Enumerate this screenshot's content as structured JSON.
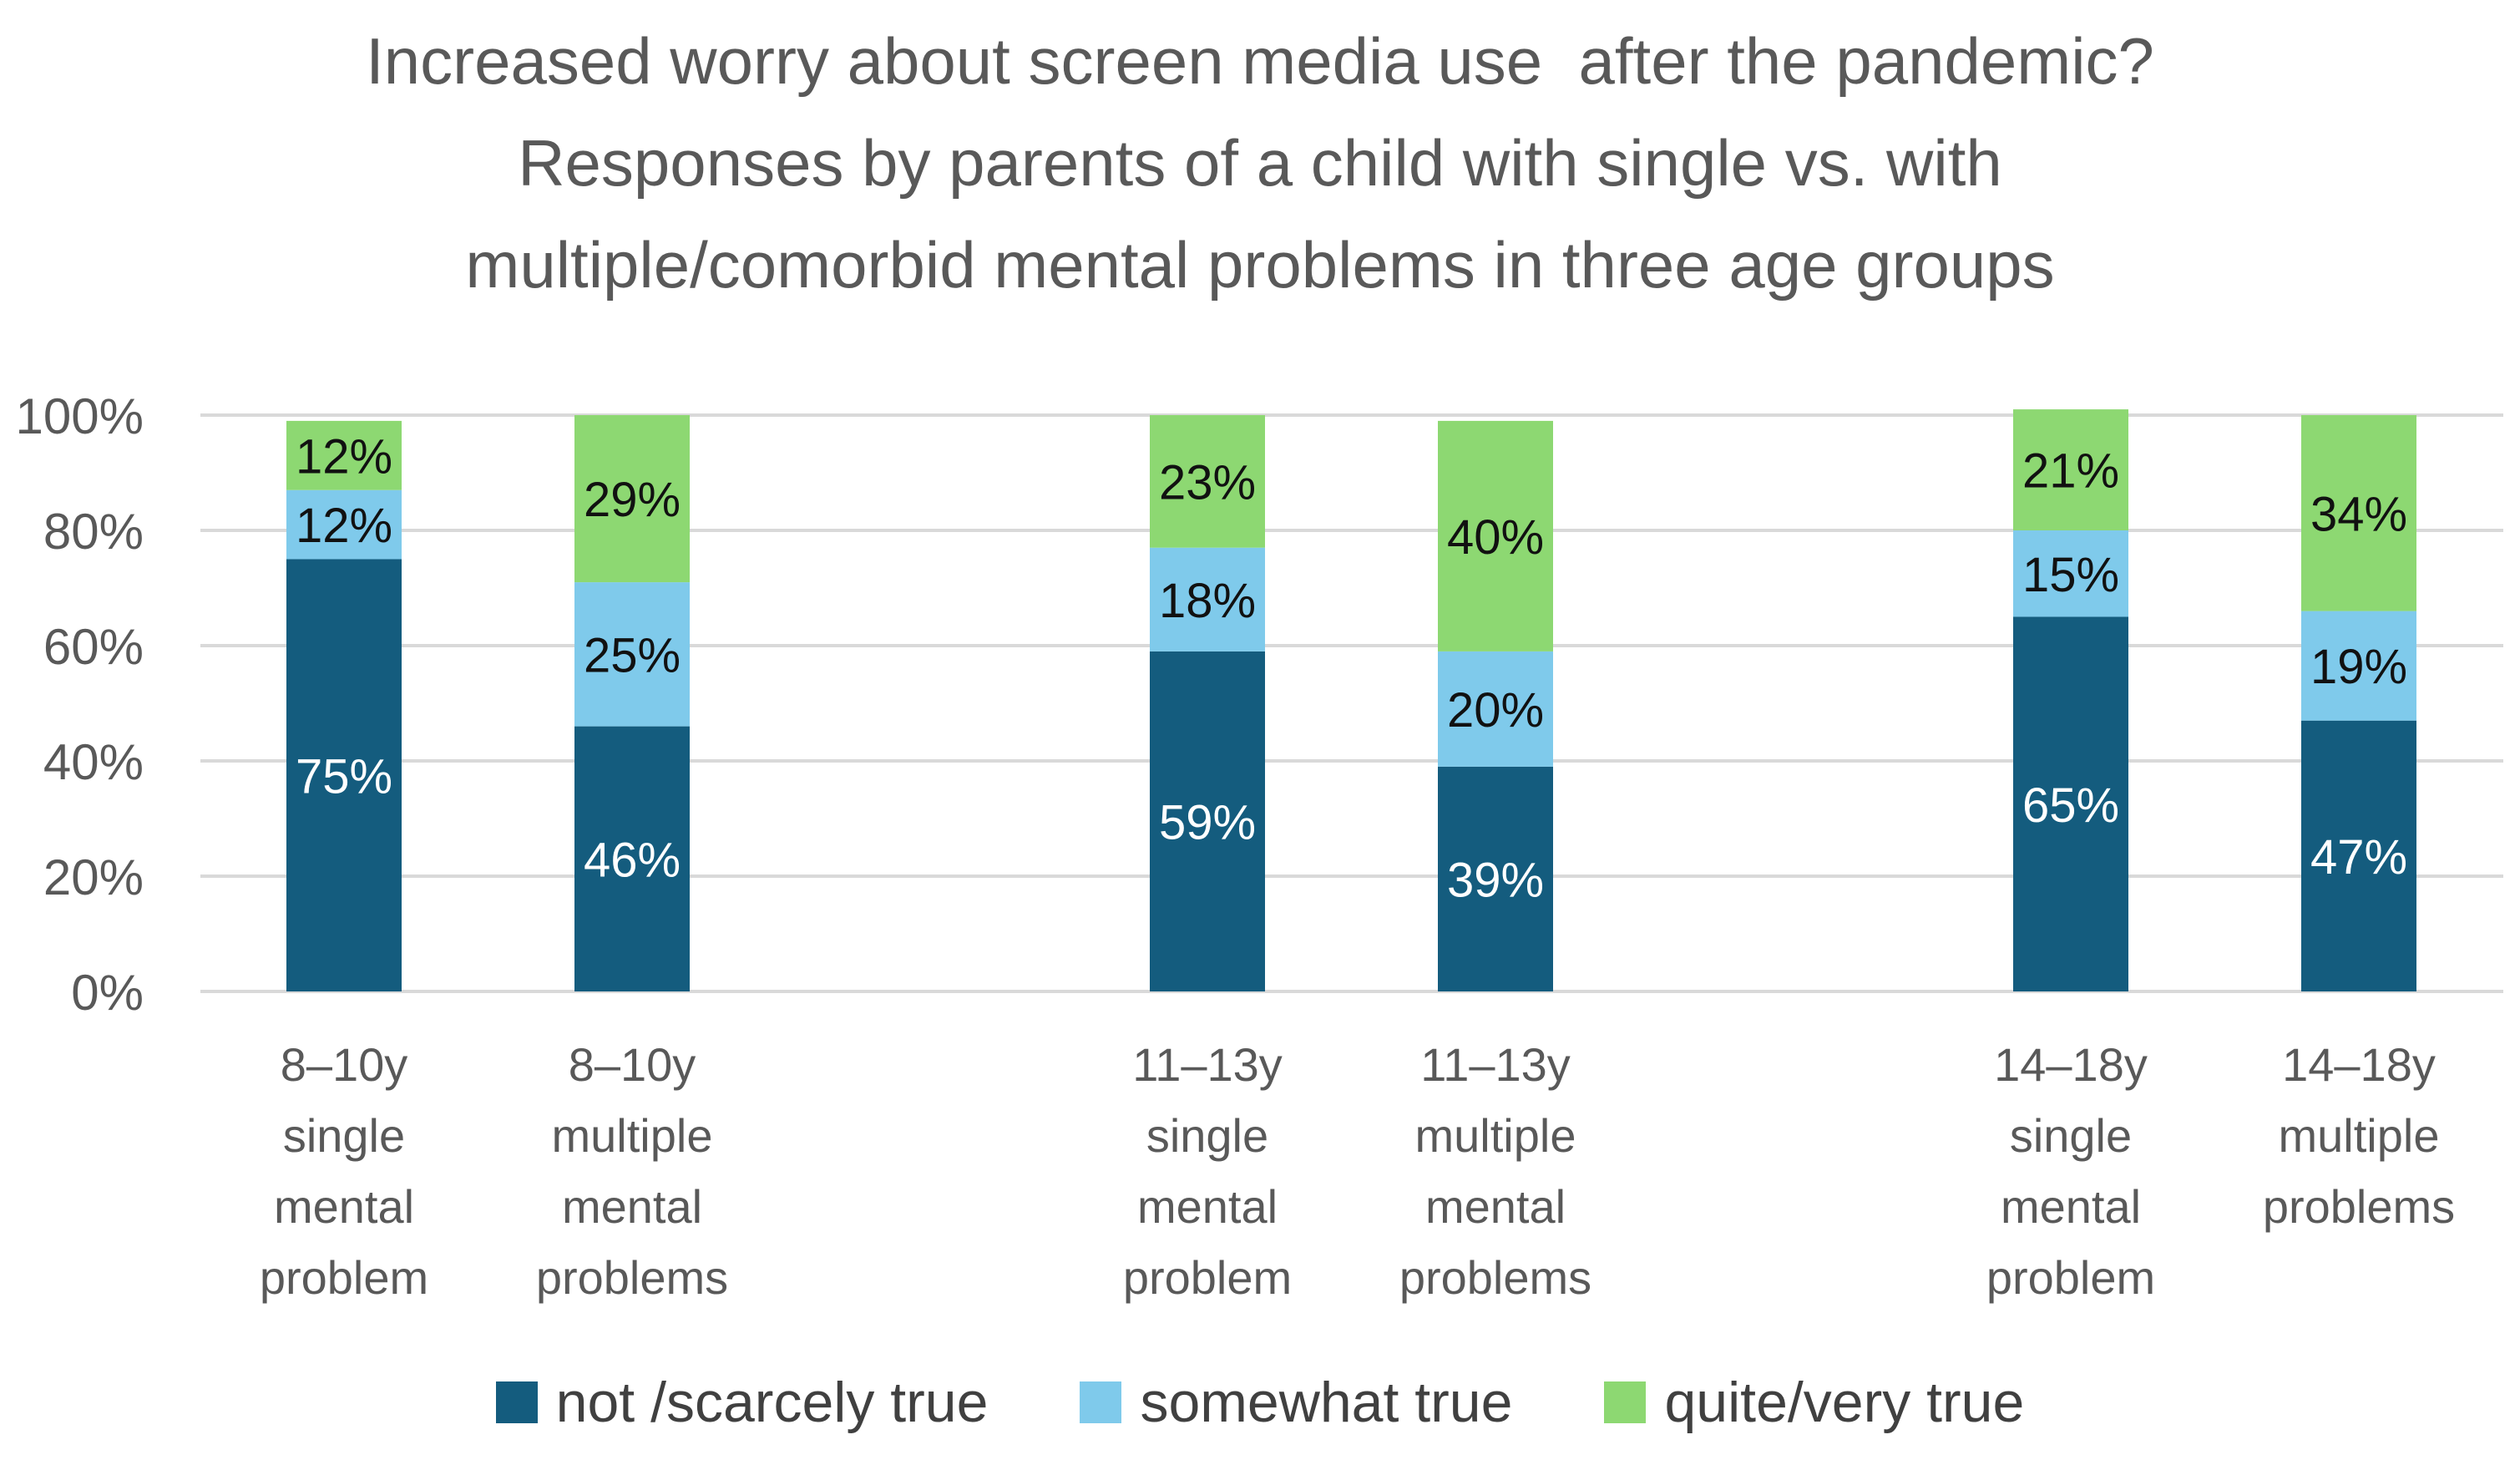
{
  "chart_data": {
    "type": "bar",
    "stacked": true,
    "title_lines": [
      "Increased worry about screen media use  after the pandemic?",
      "Responses by parents of a child with single vs. with",
      "multiple/comorbid mental problems in three age groups"
    ],
    "ylim": [
      0,
      100
    ],
    "y_ticks": [
      0,
      20,
      40,
      60,
      80,
      100
    ],
    "y_tick_labels": [
      "0%",
      "20%",
      "40%",
      "60%",
      "80%",
      "100%"
    ],
    "grid": true,
    "legend_position": "bottom",
    "categories": [
      [
        "8–10y",
        "single",
        "mental",
        "problem"
      ],
      [
        "8–10y",
        "multiple",
        "mental",
        "problems"
      ],
      [
        "11–13y",
        "single",
        "mental",
        "problem"
      ],
      [
        "11–13y",
        "multiple",
        "mental",
        "problems"
      ],
      [
        "14–18y",
        "single",
        "mental",
        "problem"
      ],
      [
        "14–18y",
        "multiple",
        "problems"
      ]
    ],
    "series": [
      {
        "name": "not /scarcely true",
        "color": "#145C7E",
        "label_color": "#ffffff",
        "values": [
          75,
          46,
          59,
          39,
          65,
          47
        ],
        "labels": [
          "75%",
          "46%",
          "59%",
          "39%",
          "65%",
          "47%"
        ]
      },
      {
        "name": "somewhat true",
        "color": "#7FCAEB",
        "label_color": "#111111",
        "values": [
          12,
          25,
          18,
          20,
          15,
          19
        ],
        "labels": [
          "12%",
          "25%",
          "18%",
          "20%",
          "15%",
          "19%"
        ]
      },
      {
        "name": "quite/very true",
        "color": "#8DD872",
        "label_color": "#111111",
        "values": [
          12,
          29,
          23,
          40,
          21,
          34
        ],
        "labels": [
          "12%",
          "29%",
          "23%",
          "40%",
          "21%",
          "34%"
        ]
      }
    ]
  }
}
